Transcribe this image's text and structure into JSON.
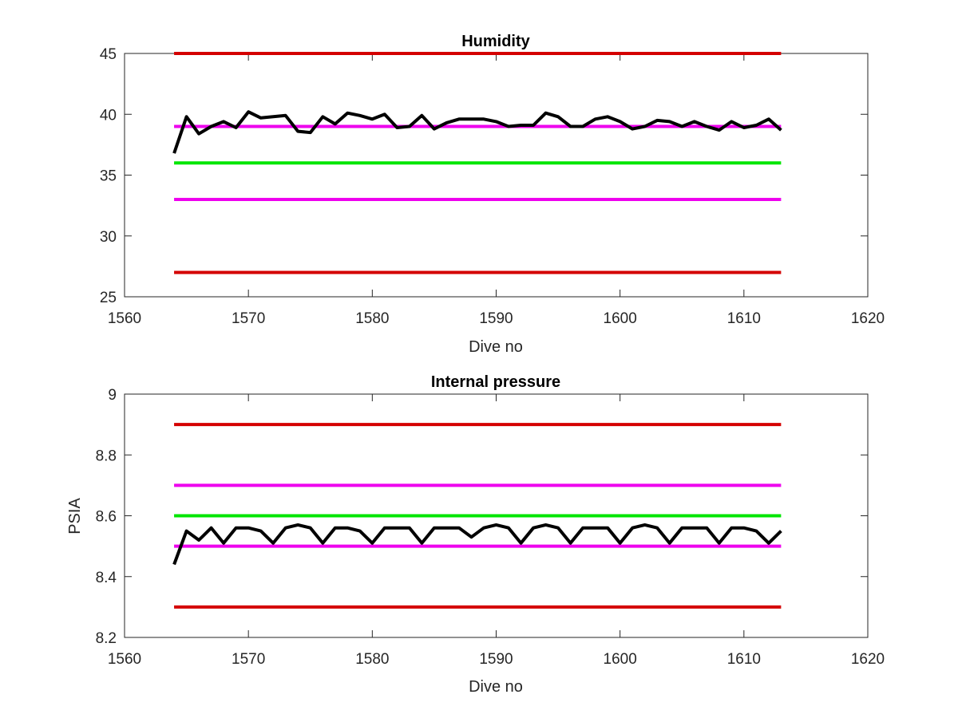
{
  "colors": {
    "red_limit": "#d40000",
    "magenta_limit": "#ee00ee",
    "green_nominal": "#00e600",
    "series": "#000000",
    "axes": "#262626"
  },
  "chart_data": [
    {
      "type": "line",
      "title": "Humidity",
      "xlabel": "Dive no",
      "ylabel": "",
      "xlim": [
        1560,
        1620
      ],
      "ylim": [
        25,
        45
      ],
      "xticks": [
        1560,
        1570,
        1580,
        1590,
        1600,
        1610,
        1620
      ],
      "yticks": [
        25,
        30,
        35,
        40,
        45
      ],
      "grid": false,
      "reference_lines": [
        {
          "y": 45,
          "x_range": [
            1564,
            1613
          ],
          "color": "red"
        },
        {
          "y": 39,
          "x_range": [
            1564,
            1613
          ],
          "color": "magenta"
        },
        {
          "y": 36,
          "x_range": [
            1564,
            1613
          ],
          "color": "green"
        },
        {
          "y": 33,
          "x_range": [
            1564,
            1613
          ],
          "color": "magenta"
        },
        {
          "y": 27,
          "x_range": [
            1564,
            1613
          ],
          "color": "red"
        }
      ],
      "series": [
        {
          "color": "black",
          "x": [
            1564,
            1565,
            1566,
            1567,
            1568,
            1569,
            1570,
            1571,
            1572,
            1573,
            1574,
            1575,
            1576,
            1577,
            1578,
            1579,
            1580,
            1581,
            1582,
            1583,
            1584,
            1585,
            1586,
            1587,
            1588,
            1589,
            1590,
            1591,
            1592,
            1593,
            1594,
            1595,
            1596,
            1597,
            1598,
            1599,
            1600,
            1601,
            1602,
            1603,
            1604,
            1605,
            1606,
            1607,
            1608,
            1609,
            1610,
            1611,
            1612,
            1613
          ],
          "values": [
            36.8,
            39.8,
            38.4,
            39.0,
            39.4,
            38.9,
            40.2,
            39.7,
            39.8,
            39.9,
            38.6,
            38.5,
            39.8,
            39.2,
            40.1,
            39.9,
            39.6,
            40.0,
            38.9,
            39.0,
            39.9,
            38.8,
            39.3,
            39.6,
            39.6,
            39.6,
            39.4,
            39.0,
            39.1,
            39.1,
            40.1,
            39.8,
            39.0,
            39.0,
            39.6,
            39.8,
            39.4,
            38.8,
            39.0,
            39.5,
            39.4,
            39.0,
            39.4,
            39.0,
            38.7,
            39.4,
            38.9,
            39.1,
            39.6,
            38.7
          ]
        }
      ]
    },
    {
      "type": "line",
      "title": "Internal pressure",
      "xlabel": "Dive no",
      "ylabel": "PSIA",
      "xlim": [
        1560,
        1620
      ],
      "ylim": [
        8.2,
        9.0
      ],
      "xticks": [
        1560,
        1570,
        1580,
        1590,
        1600,
        1610,
        1620
      ],
      "yticks": [
        "8.2",
        "8.4",
        "8.6",
        "8.8",
        "9"
      ],
      "grid": false,
      "reference_lines": [
        {
          "y": 8.9,
          "x_range": [
            1564,
            1613
          ],
          "color": "red"
        },
        {
          "y": 8.7,
          "x_range": [
            1564,
            1613
          ],
          "color": "magenta"
        },
        {
          "y": 8.6,
          "x_range": [
            1564,
            1613
          ],
          "color": "green"
        },
        {
          "y": 8.5,
          "x_range": [
            1564,
            1613
          ],
          "color": "magenta"
        },
        {
          "y": 8.3,
          "x_range": [
            1564,
            1613
          ],
          "color": "red"
        }
      ],
      "series": [
        {
          "color": "black",
          "x": [
            1564,
            1565,
            1566,
            1567,
            1568,
            1569,
            1570,
            1571,
            1572,
            1573,
            1574,
            1575,
            1576,
            1577,
            1578,
            1579,
            1580,
            1581,
            1582,
            1583,
            1584,
            1585,
            1586,
            1587,
            1588,
            1589,
            1590,
            1591,
            1592,
            1593,
            1594,
            1595,
            1596,
            1597,
            1598,
            1599,
            1600,
            1601,
            1602,
            1603,
            1604,
            1605,
            1606,
            1607,
            1608,
            1609,
            1610,
            1611,
            1612,
            1613
          ],
          "values": [
            8.44,
            8.55,
            8.52,
            8.56,
            8.51,
            8.56,
            8.56,
            8.55,
            8.51,
            8.56,
            8.57,
            8.56,
            8.51,
            8.56,
            8.56,
            8.55,
            8.51,
            8.56,
            8.56,
            8.56,
            8.51,
            8.56,
            8.56,
            8.56,
            8.53,
            8.56,
            8.57,
            8.56,
            8.51,
            8.56,
            8.57,
            8.56,
            8.51,
            8.56,
            8.56,
            8.56,
            8.51,
            8.56,
            8.57,
            8.56,
            8.51,
            8.56,
            8.56,
            8.56,
            8.51,
            8.56,
            8.56,
            8.55,
            8.51,
            8.55
          ]
        }
      ]
    }
  ]
}
